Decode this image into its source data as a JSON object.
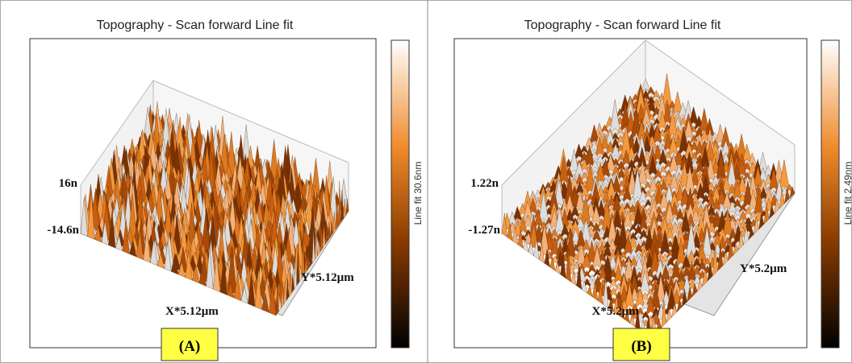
{
  "panels": [
    {
      "title": "Topography - Scan forward   Line fit",
      "z_max": "16n",
      "z_min": "-14.6n",
      "x_axis": "X*5.12µm",
      "y_axis": "Y*5.12µm",
      "colorbar_label": "Line fit 30.6nm",
      "panel_label": "(A)"
    },
    {
      "title": "Topography - Scan forward   Line fit",
      "z_max": "1.22n",
      "z_min": "-1.27n",
      "x_axis": "X*5.2µm",
      "y_axis": "Y*5.2µm",
      "colorbar_label": "Line fit 2.49nm",
      "panel_label": "(B)"
    }
  ]
}
